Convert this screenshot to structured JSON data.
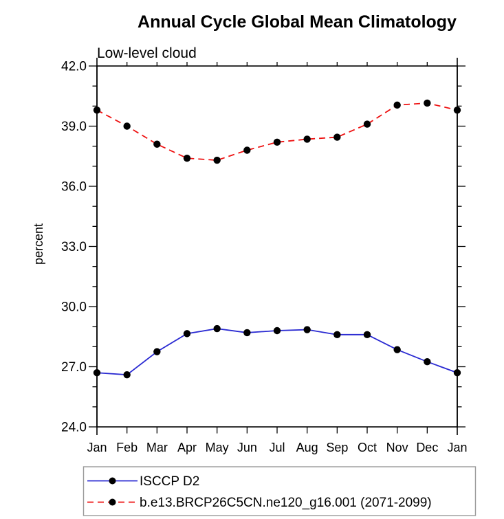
{
  "page": {
    "background": "#ffffff"
  },
  "chart_data": {
    "type": "line",
    "title": "Annual Cycle Global Mean Climatology",
    "subtitle": "Low-level cloud",
    "ylabel": "percent",
    "xlabel": "",
    "ylim": [
      24.0,
      42.0
    ],
    "ytick_major_step": 3.0,
    "ytick_minor_step": 1.0,
    "ytick_labels": [
      "24.0",
      "27.0",
      "30.0",
      "33.0",
      "36.0",
      "39.0",
      "42.0"
    ],
    "categories": [
      "Jan",
      "Feb",
      "Mar",
      "Apr",
      "May",
      "Jun",
      "Jul",
      "Aug",
      "Sep",
      "Oct",
      "Nov",
      "Dec",
      "Jan"
    ],
    "grid": false,
    "legend_position": "bottom-left",
    "frame_color": "#000000",
    "marker": "filled-circle",
    "marker_color": "#000000",
    "series": [
      {
        "name": "ISCCP D2",
        "color": "#2a2ad2",
        "style": "solid",
        "values": [
          26.7,
          26.6,
          27.75,
          28.65,
          28.9,
          28.7,
          28.8,
          28.85,
          28.6,
          28.6,
          27.85,
          27.25,
          26.7
        ]
      },
      {
        "name": "b.e13.BRCP26C5CN.ne120_g16.001 (2071-2099)",
        "color": "#ee1111",
        "style": "dashed",
        "values": [
          39.8,
          39.0,
          38.1,
          37.4,
          37.3,
          37.8,
          38.2,
          38.35,
          38.45,
          39.1,
          40.05,
          40.15,
          39.8
        ]
      }
    ]
  }
}
